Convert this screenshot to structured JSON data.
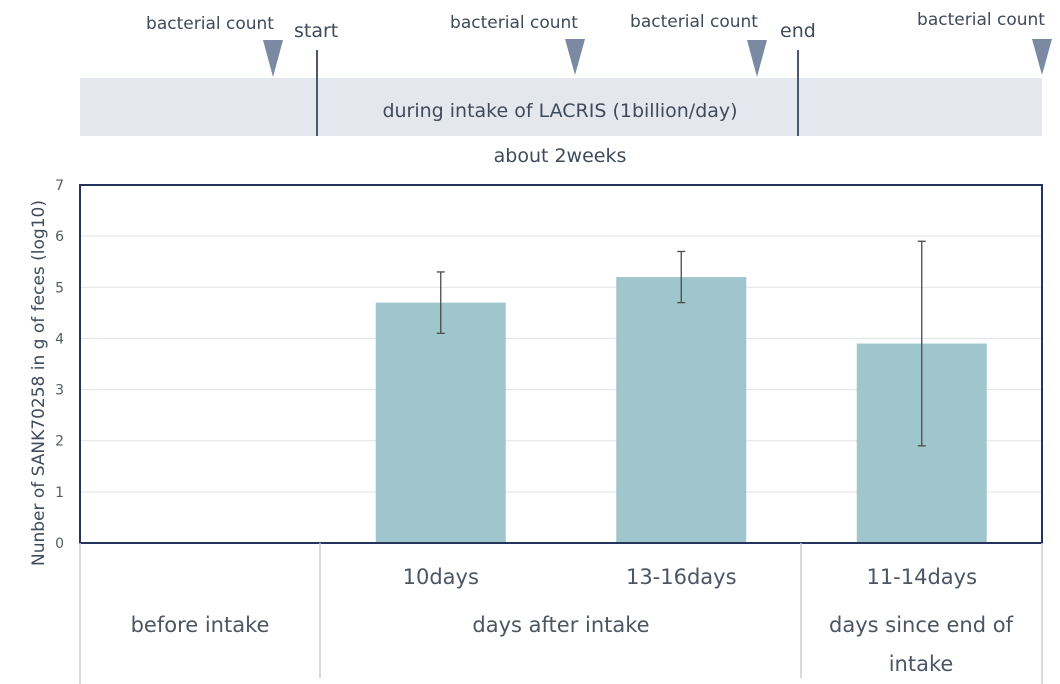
{
  "timeline": {
    "count_label": "bacterial count",
    "start_label": "start",
    "end_label": "end",
    "band_label": "during intake of LACRIS (1billion/day)",
    "duration_label": "about 2weeks",
    "marker_color": "#7b8aa3",
    "band_color": "#e4e8ee"
  },
  "chart_data": {
    "type": "bar",
    "ylabel": "Nunber of SANK70258 in g of feces (log10)",
    "ylim": [
      0,
      7
    ],
    "yticks": [
      "0",
      "1",
      "2",
      "3",
      "4",
      "5",
      "6",
      "7"
    ],
    "grid": true,
    "bar_color": "#9fc6cc",
    "categories": [
      "",
      "10days",
      "13-16days",
      "11-14days"
    ],
    "values": [
      null,
      4.7,
      5.2,
      3.9
    ],
    "error_low": [
      null,
      4.1,
      4.7,
      1.9
    ],
    "error_high": [
      null,
      5.3,
      5.7,
      5.9
    ],
    "groups": [
      {
        "label": "before intake"
      },
      {
        "label": "days after intake"
      },
      {
        "label": "days since end of intake"
      }
    ]
  }
}
